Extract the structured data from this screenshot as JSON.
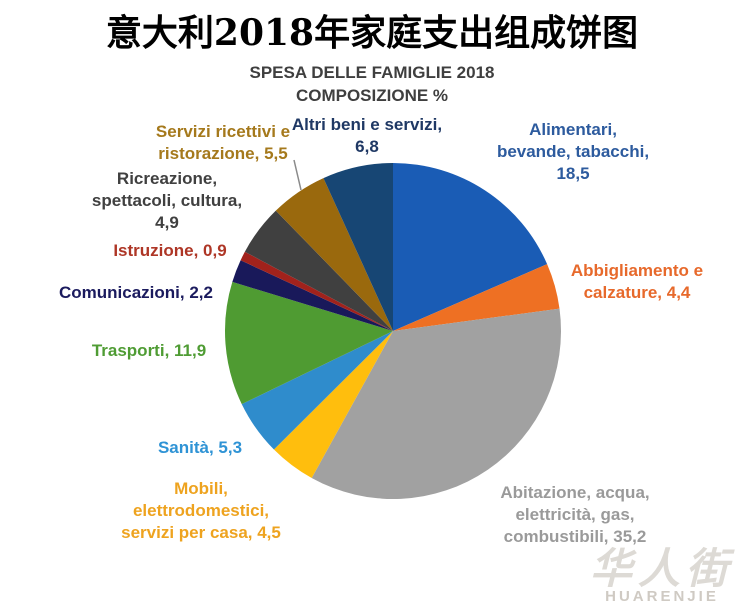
{
  "title": "意大利2018年家庭支出组成饼图",
  "chart_data": {
    "type": "pie",
    "title": "SPESA DELLE FAMIGLIE 2018",
    "subtitle": "COMPOSIZIONE %",
    "unit": "percent",
    "rotation": "clockwise-from-12-oclock",
    "legend_position": "none (callout labels around pie)",
    "slices": [
      {
        "label": "Alimentari, bevande, tabacchi",
        "value": 18.5,
        "color": "#1A5CB5"
      },
      {
        "label": "Abbigliamento e calzature",
        "value": 4.4,
        "color": "#EE7023"
      },
      {
        "label": "Abitazione, acqua, elettricità, gas, combustibili",
        "value": 35.2,
        "color": "#A1A1A1"
      },
      {
        "label": "Mobili, elettrodomestici, servizi per casa",
        "value": 4.5,
        "color": "#FFBE0D"
      },
      {
        "label": "Sanità",
        "value": 5.3,
        "color": "#2F8CCC"
      },
      {
        "label": "Trasporti",
        "value": 11.9,
        "color": "#4F9B32"
      },
      {
        "label": "Comunicazioni",
        "value": 2.2,
        "color": "#19195A"
      },
      {
        "label": "Istruzione",
        "value": 0.9,
        "color": "#A1221C"
      },
      {
        "label": "Ricreazione, spettacoli, cultura",
        "value": 4.9,
        "color": "#404040"
      },
      {
        "label": "Servizi ricettivi e ristorazione",
        "value": 5.5,
        "color": "#9A690D"
      },
      {
        "label": "Altri beni e servizi",
        "value": 6.8,
        "color": "#174674"
      }
    ]
  },
  "subtitle": {
    "line1": "SPESA DELLE FAMIGLIE 2018",
    "line2": "COMPOSIZIONE %"
  },
  "callouts": [
    {
      "color": "#2D5B9E",
      "lines": [
        "Alimentari,",
        "bevande, tabacchi,",
        "18,5"
      ]
    },
    {
      "color": "#E7692B",
      "lines": [
        "Abbigliamento e",
        "calzature, 4,4"
      ]
    },
    {
      "color": "#9A9A9A",
      "lines": [
        "Abitazione, acqua,",
        "elettricità, gas,",
        "combustibili, 35,2"
      ]
    },
    {
      "color": "#EEA31F",
      "lines": [
        "Mobili,",
        "elettrodomestici,",
        "servizi per casa, 4,5"
      ]
    },
    {
      "color": "#2F93D5",
      "lines": [
        "Sanità, 5,3"
      ]
    },
    {
      "color": "#4F9C34",
      "lines": [
        "Trasporti, 11,9"
      ]
    },
    {
      "color": "#1B1B5E",
      "lines": [
        "Comunicazioni, 2,2"
      ]
    },
    {
      "color": "#AE3626",
      "lines": [
        "Istruzione, 0,9"
      ]
    },
    {
      "color": "#404040",
      "lines": [
        "Ricreazione,",
        "spettacoli, cultura,",
        "4,9"
      ]
    },
    {
      "color": "#A5791C",
      "lines": [
        "Servizi ricettivi e",
        "ristorazione, 5,5"
      ]
    },
    {
      "color": "#1F3864",
      "lines": [
        "Altri beni e servizi,",
        "6,8"
      ]
    }
  ],
  "watermark": {
    "cjk": "华人街",
    "latin": "HUARENJIE"
  }
}
